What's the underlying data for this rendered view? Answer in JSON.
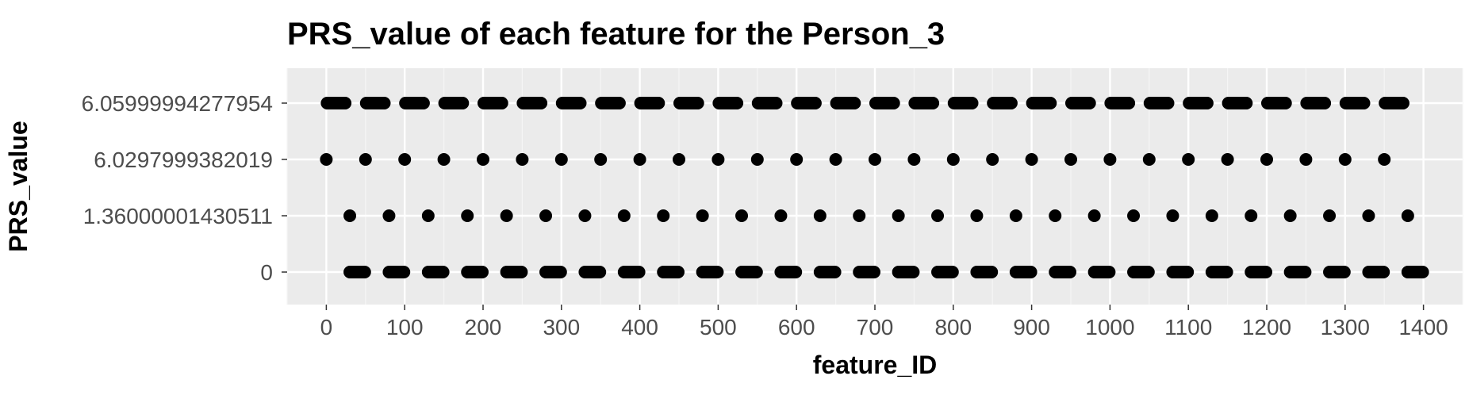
{
  "chart_data": {
    "type": "scatter",
    "title": "PRS_value of each feature for the Person_3",
    "xlabel": "feature_ID",
    "ylabel": "PRS_value",
    "xlim": [
      -50,
      1450
    ],
    "x_ticks": [
      0,
      100,
      200,
      300,
      400,
      500,
      600,
      700,
      800,
      900,
      1000,
      1100,
      1200,
      1300,
      1400
    ],
    "x_tick_labels": [
      "0",
      "100",
      "200",
      "300",
      "400",
      "500",
      "600",
      "700",
      "800",
      "900",
      "1000",
      "1100",
      "1200",
      "1300",
      "1400"
    ],
    "y_categories": [
      "0",
      "1.36000001430511",
      "6.0297999382019",
      "6.05999994277954"
    ],
    "grid": true,
    "legend": "none",
    "colors": {
      "panel_background": "#ebebeb",
      "grid_major": "#ffffff",
      "grid_minor": "#f5f5f5",
      "point": "#000000",
      "tick_text": "#4d4d4d",
      "title_text": "#000000"
    },
    "series": [
      {
        "category": "6.05999994277954",
        "segments": [
          [
            1,
            24
          ],
          [
            51,
            74
          ],
          [
            101,
            124
          ],
          [
            151,
            174
          ],
          [
            201,
            224
          ],
          [
            251,
            274
          ],
          [
            301,
            324
          ],
          [
            351,
            374
          ],
          [
            401,
            424
          ],
          [
            451,
            474
          ],
          [
            501,
            524
          ],
          [
            551,
            574
          ],
          [
            601,
            624
          ],
          [
            651,
            674
          ],
          [
            701,
            724
          ],
          [
            751,
            774
          ],
          [
            801,
            824
          ],
          [
            851,
            874
          ],
          [
            901,
            924
          ],
          [
            951,
            974
          ],
          [
            1001,
            1024
          ],
          [
            1051,
            1074
          ],
          [
            1101,
            1124
          ],
          [
            1151,
            1174
          ],
          [
            1201,
            1224
          ],
          [
            1251,
            1274
          ],
          [
            1301,
            1324
          ],
          [
            1351,
            1374
          ]
        ],
        "points": []
      },
      {
        "category": "6.0297999382019",
        "segments": [],
        "points": [
          0,
          50,
          100,
          150,
          200,
          250,
          300,
          350,
          400,
          450,
          500,
          550,
          600,
          650,
          700,
          750,
          800,
          850,
          900,
          950,
          1000,
          1050,
          1100,
          1150,
          1200,
          1250,
          1300,
          1350
        ]
      },
      {
        "category": "1.36000001430511",
        "segments": [],
        "points": [
          30,
          80,
          130,
          180,
          230,
          280,
          330,
          380,
          430,
          480,
          530,
          580,
          630,
          680,
          730,
          780,
          830,
          880,
          930,
          980,
          1030,
          1080,
          1130,
          1180,
          1230,
          1280,
          1330,
          1380
        ]
      },
      {
        "category": "0",
        "segments": [
          [
            30,
            49
          ],
          [
            80,
            99
          ],
          [
            130,
            149
          ],
          [
            180,
            199
          ],
          [
            230,
            249
          ],
          [
            280,
            299
          ],
          [
            330,
            349
          ],
          [
            380,
            399
          ],
          [
            430,
            449
          ],
          [
            480,
            499
          ],
          [
            530,
            549
          ],
          [
            580,
            599
          ],
          [
            630,
            649
          ],
          [
            680,
            699
          ],
          [
            730,
            749
          ],
          [
            780,
            799
          ],
          [
            830,
            849
          ],
          [
            880,
            899
          ],
          [
            930,
            949
          ],
          [
            980,
            999
          ],
          [
            1030,
            1049
          ],
          [
            1080,
            1099
          ],
          [
            1130,
            1149
          ],
          [
            1180,
            1199
          ],
          [
            1230,
            1249
          ],
          [
            1280,
            1299
          ],
          [
            1330,
            1349
          ],
          [
            1380,
            1399
          ]
        ],
        "points": []
      }
    ]
  }
}
